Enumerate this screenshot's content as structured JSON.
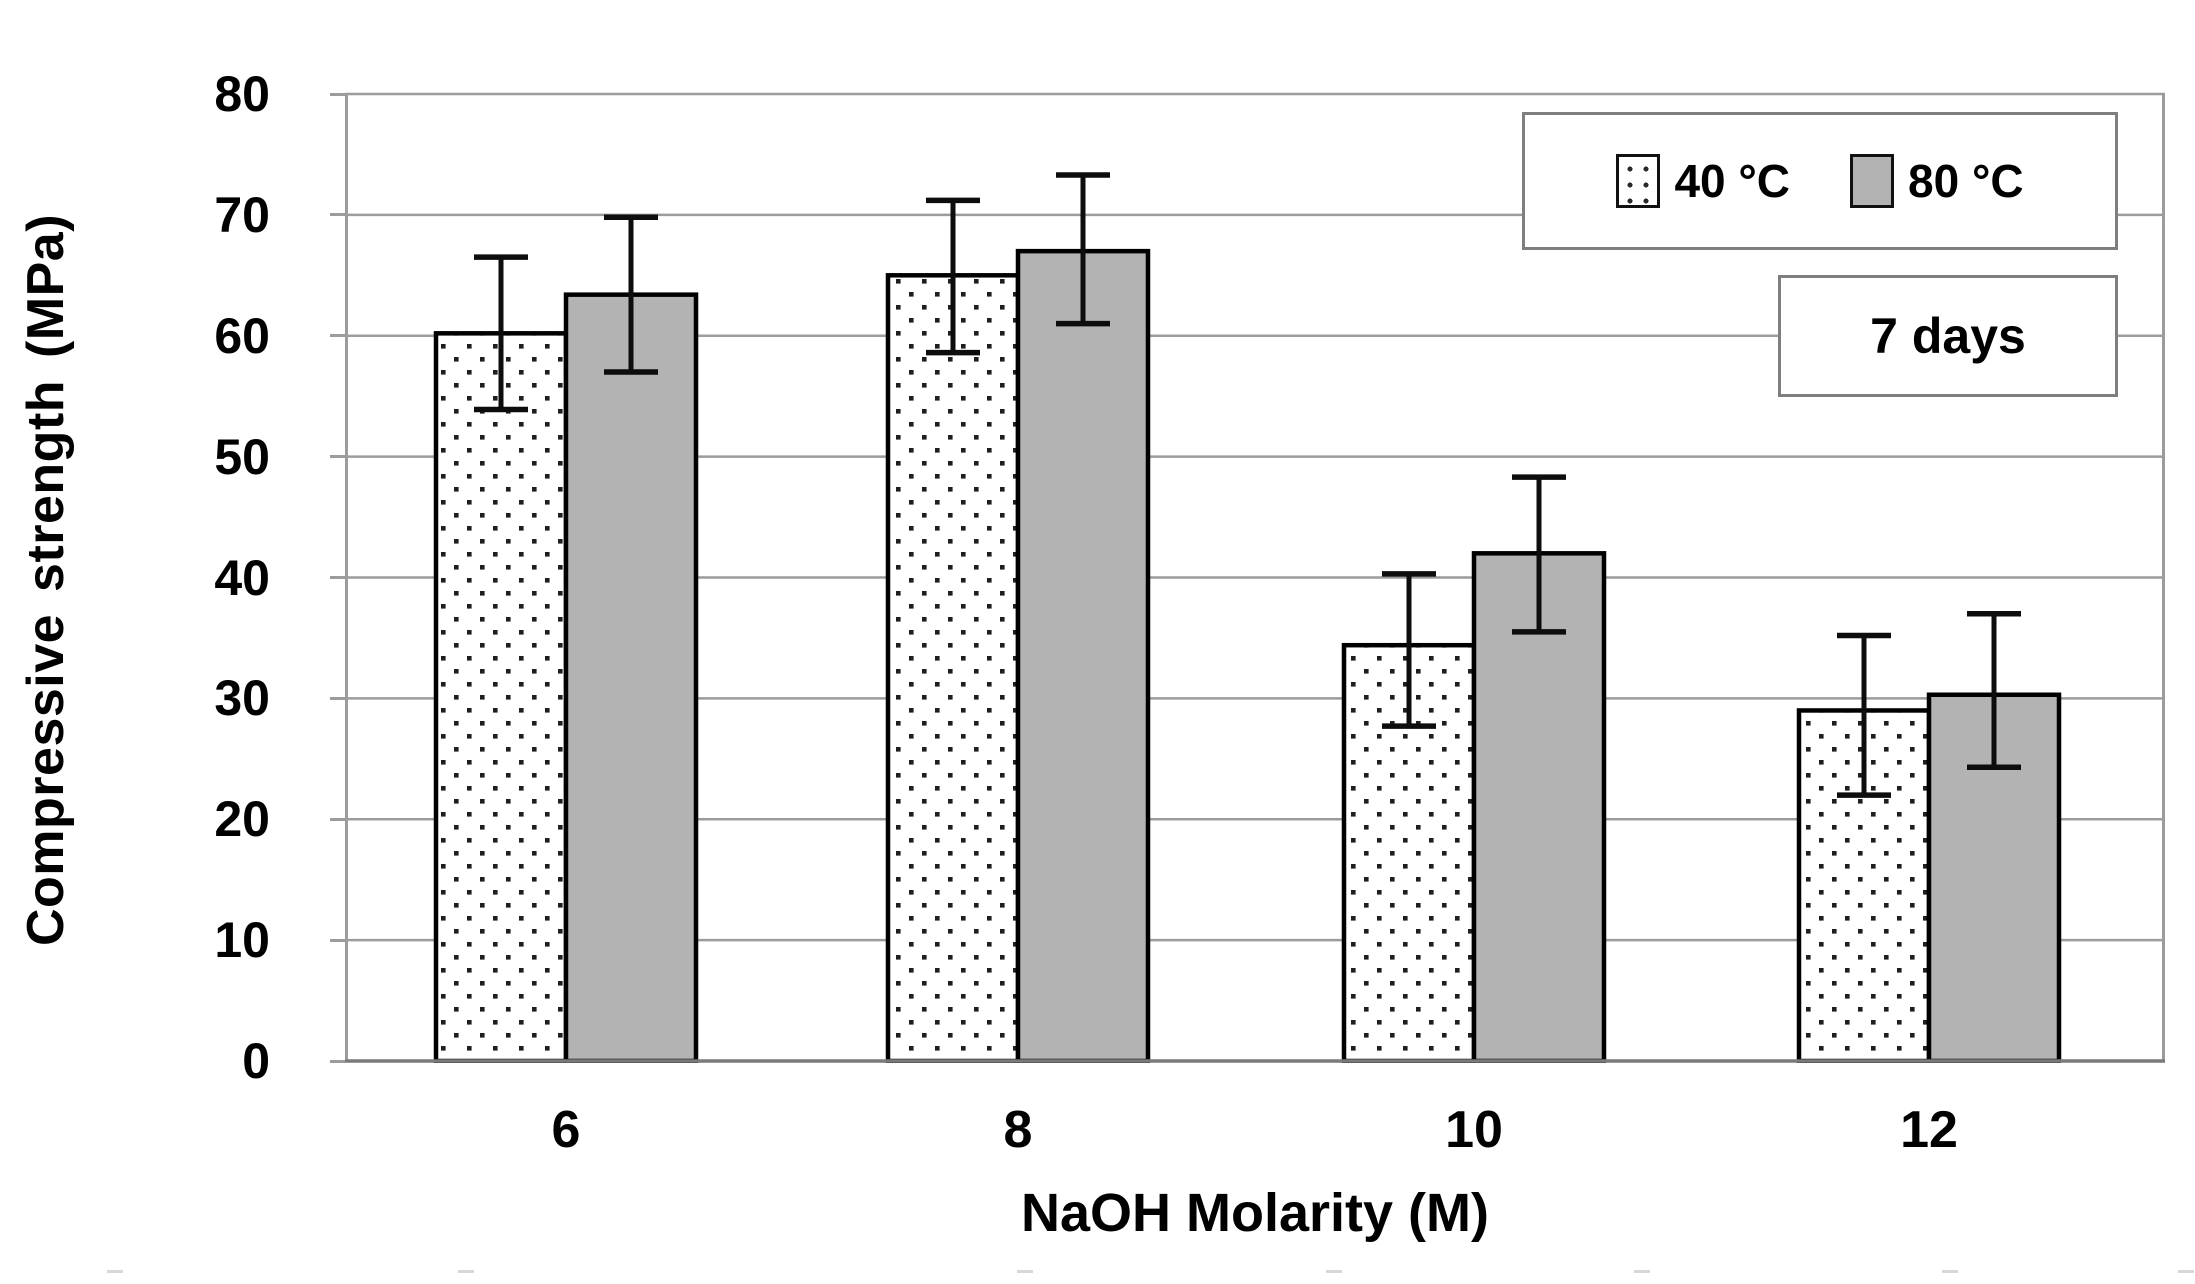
{
  "chart_data": {
    "type": "bar",
    "title": "",
    "xlabel": "NaOH Molarity (M)",
    "ylabel": "Compressive strength (MPa)",
    "categories": [
      "6",
      "8",
      "10",
      "12"
    ],
    "series": [
      {
        "name": "40 °C",
        "style": "white-dotted",
        "values": [
          60.2,
          65.0,
          34.4,
          29.0
        ],
        "error_low": [
          53.9,
          58.6,
          27.7,
          22.0
        ],
        "error_high": [
          66.5,
          71.2,
          40.3,
          35.2
        ]
      },
      {
        "name": "80 °C",
        "style": "gray",
        "values": [
          63.4,
          67.0,
          42.0,
          30.3
        ],
        "error_low": [
          57.0,
          61.0,
          35.5,
          24.3
        ],
        "error_high": [
          69.8,
          73.3,
          48.3,
          37.0
        ]
      }
    ],
    "ylim": [
      0,
      80
    ],
    "yticks": [
      0,
      10,
      20,
      30,
      40,
      50,
      60,
      70,
      80
    ],
    "grid": "horizontal",
    "legend_position": "top-right",
    "annotation": "7 days"
  },
  "colors": {
    "series_40c_fill": "#ffffff",
    "series_40c_dot": "#1f1f1f",
    "series_80c_fill": "#b3b3b3",
    "bar_border": "#000000",
    "error_bar": "#0d0d0d",
    "grid": "#9c9c9c",
    "axis": "#7a7a7a",
    "box_border": "#7f7f7f",
    "text": "#000000"
  }
}
